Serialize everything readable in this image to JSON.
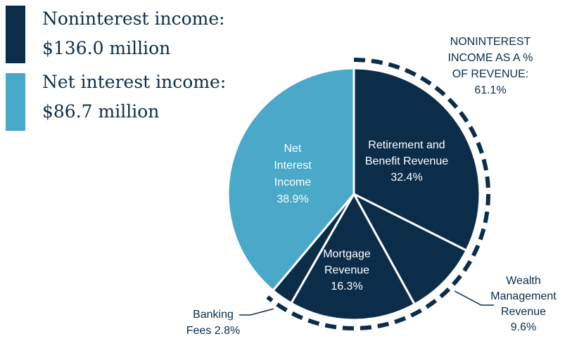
{
  "legend": {
    "noninterest": {
      "line1": "Noninterest income:",
      "line2": "$136.0 million",
      "color": "#0b2d4a"
    },
    "net_interest": {
      "line1": "Net interest income:",
      "line2": "$86.7 million",
      "color": "#4aa8c8"
    }
  },
  "annotation": {
    "lines": [
      "NONINTEREST",
      "INCOME AS A %",
      "OF REVENUE:",
      "61.1%"
    ]
  },
  "colors": {
    "dark": "#0b2d4a",
    "light": "#4aa8c8"
  },
  "chart_data": {
    "type": "pie",
    "start": "12 o'clock, clockwise",
    "slices": [
      {
        "name": "Retirement and Benefit Revenue",
        "value": 32.4,
        "color": "#0b2d4a",
        "label": [
          "Retirement and",
          "Benefit Revenue",
          "32.4%"
        ]
      },
      {
        "name": "Wealth Management Revenue",
        "value": 9.6,
        "color": "#0b2d4a",
        "label": [
          "Wealth",
          "Management",
          "Revenue",
          "9.6%"
        ]
      },
      {
        "name": "Mortgage Revenue",
        "value": 16.3,
        "color": "#0b2d4a",
        "label": [
          "Mortgage",
          "Revenue",
          "16.3%"
        ]
      },
      {
        "name": "Banking Fees",
        "value": 2.8,
        "color": "#0b2d4a",
        "label": [
          "Banking",
          "Fees 2.8%"
        ]
      },
      {
        "name": "Net Interest Income",
        "value": 38.9,
        "color": "#4aa8c8",
        "label": [
          "Net",
          "Interest",
          "Income",
          "38.9%"
        ]
      }
    ],
    "highlight": {
      "label": "NONINTEREST INCOME AS A % OF REVENUE:",
      "value": 61.1
    }
  }
}
